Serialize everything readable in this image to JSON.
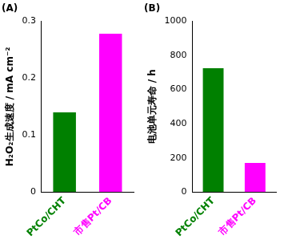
{
  "chart_data": [
    {
      "type": "bar",
      "title": "(A)",
      "y_label": "H₂O₂生成速度 / mA cm⁻²",
      "categories": [
        "PtCo/CHT",
        "市售Pt/CB"
      ],
      "values": [
        0.14,
        0.278
      ],
      "colors": [
        "#008000",
        "#ff00ff"
      ],
      "ylim": [
        0,
        0.3
      ],
      "yticks": [
        0,
        0.1,
        0.2,
        0.3
      ],
      "grid": false
    },
    {
      "type": "bar",
      "title": "(B)",
      "y_label": "电池单元寿命 / h",
      "categories": [
        "PtCo/CHT",
        "市售Pt/CB"
      ],
      "values": [
        725,
        170
      ],
      "colors": [
        "#008000",
        "#ff00ff"
      ],
      "ylim": [
        0,
        1000
      ],
      "yticks": [
        0,
        200,
        400,
        600,
        800,
        1000
      ],
      "grid": false
    }
  ]
}
